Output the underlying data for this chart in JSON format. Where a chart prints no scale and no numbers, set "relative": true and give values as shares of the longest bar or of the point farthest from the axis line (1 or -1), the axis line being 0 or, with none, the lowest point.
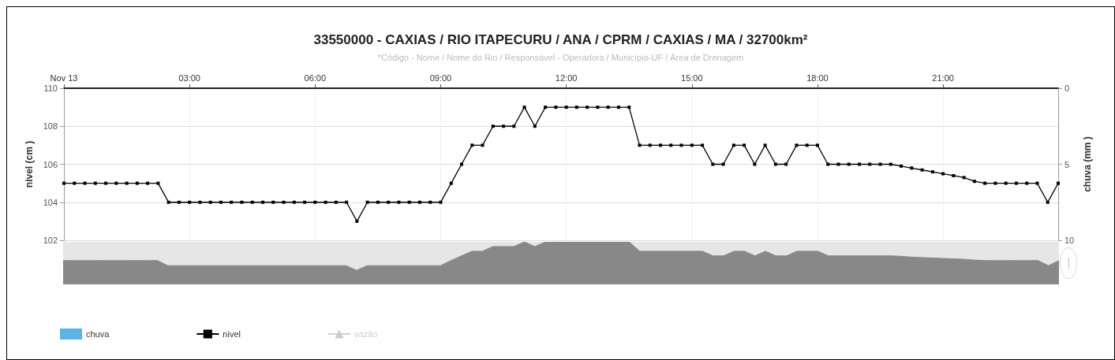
{
  "chart_data": [
    {
      "type": "line",
      "title": "33550000 - CAXIAS / RIO ITAPECURU / ANA / CPRM / CAXIAS / MA / 32700km²",
      "subtitle": "*Código - Nome / Nome do Rio / Responsável - Operadora / Município-UF / Área de Drenagem",
      "ylabel": "nivel (cm )",
      "y2label": "chuva (mm )",
      "xlim": [
        0,
        23.75
      ],
      "xticks": [
        {
          "value": 0,
          "label": "Nov 13"
        },
        {
          "value": 3,
          "label": "03:00"
        },
        {
          "value": 6,
          "label": "06:00"
        },
        {
          "value": 9,
          "label": "09:00"
        },
        {
          "value": 12,
          "label": "12:00"
        },
        {
          "value": 15,
          "label": "15:00"
        },
        {
          "value": 18,
          "label": "18:00"
        },
        {
          "value": 21,
          "label": "21:00"
        }
      ],
      "ylim": [
        102,
        110
      ],
      "yticks": [
        102,
        104,
        106,
        108,
        110
      ],
      "y2lim": [
        10,
        0
      ],
      "y2ticks": [
        0,
        5,
        10
      ],
      "grid": true,
      "legend": "bottom left",
      "series": [
        {
          "name": "chuva",
          "type": "bar",
          "axis": "y2",
          "color": "#5ab4e5",
          "x": [
            0,
            1,
            2,
            3,
            4,
            5,
            6,
            7,
            8,
            9,
            10,
            11,
            12,
            13,
            14,
            15,
            16,
            17,
            18,
            19,
            20,
            21,
            22,
            23
          ],
          "values": [
            0,
            0,
            0,
            0,
            0,
            0,
            0,
            0,
            0,
            0,
            0,
            0,
            0,
            0,
            0,
            0,
            0,
            0,
            0,
            0,
            0,
            0,
            0,
            0
          ]
        },
        {
          "name": "nivel",
          "color": "#000000",
          "marker": "square",
          "line_style": "solid",
          "x": [
            0,
            0.25,
            0.5,
            0.75,
            1,
            1.25,
            1.5,
            1.75,
            2,
            2.25,
            2.5,
            2.75,
            3,
            3.25,
            3.5,
            3.75,
            4,
            4.25,
            4.5,
            4.75,
            5,
            5.25,
            5.5,
            5.75,
            6,
            6.25,
            6.5,
            6.75,
            7,
            7.25,
            7.5,
            7.75,
            8,
            8.25,
            8.5,
            8.75,
            9,
            9.25,
            9.5,
            9.75,
            10,
            10.25,
            10.5,
            10.75,
            11,
            11.25,
            11.5,
            11.75,
            12,
            12.25,
            12.5,
            12.75,
            13,
            13.25,
            13.5,
            13.75,
            14,
            14.25,
            14.5,
            14.75,
            15,
            15.25,
            15.5,
            15.75,
            16,
            16.25,
            16.5,
            16.75,
            17,
            17.25,
            17.5,
            17.75,
            18,
            18.25,
            18.5,
            18.75,
            19,
            19.25,
            19.5,
            19.75,
            20,
            20.25,
            20.5,
            20.75,
            21,
            21.25,
            21.5,
            21.75,
            22,
            22.25,
            22.5,
            22.75,
            23,
            23.25,
            23.5,
            23.75
          ],
          "values": [
            105,
            105,
            105,
            105,
            105,
            105,
            105,
            105,
            105,
            105,
            104,
            104,
            104,
            104,
            104,
            104,
            104,
            104,
            104,
            104,
            104,
            104,
            104,
            104,
            104,
            104,
            104,
            104,
            103,
            104,
            104,
            104,
            104,
            104,
            104,
            104,
            104,
            105,
            106,
            107,
            107,
            108,
            108,
            108,
            109,
            108,
            109,
            109,
            109,
            109,
            109,
            109,
            109,
            109,
            109,
            107,
            107,
            107,
            107,
            107,
            107,
            107,
            106,
            106,
            107,
            107,
            106,
            107,
            106,
            106,
            107,
            107,
            107,
            106,
            106,
            106,
            106,
            106,
            106,
            106,
            105.9,
            105.8,
            105.7,
            105.6,
            105.5,
            105.4,
            105.3,
            105.1,
            105,
            105,
            105,
            105,
            105,
            105,
            104,
            105
          ]
        },
        {
          "name": "vazão",
          "color": "#c8c8c8",
          "marker": "triangle"
        }
      ]
    },
    {
      "type": "area",
      "relative": true,
      "xlim": [
        0,
        23.75
      ],
      "series": [
        {
          "color": "#888888",
          "x": [
            0,
            0.25,
            0.5,
            0.75,
            1,
            1.25,
            1.5,
            1.75,
            2,
            2.25,
            2.5,
            2.75,
            3,
            3.25,
            3.5,
            3.75,
            4,
            4.25,
            4.5,
            4.75,
            5,
            5.25,
            5.5,
            5.75,
            6,
            6.25,
            6.5,
            6.75,
            7,
            7.25,
            7.5,
            7.75,
            8,
            8.25,
            8.5,
            8.75,
            9,
            9.25,
            9.5,
            9.75,
            10,
            10.25,
            10.5,
            10.75,
            11,
            11.25,
            11.5,
            11.75,
            12,
            12.25,
            12.5,
            12.75,
            13,
            13.25,
            13.5,
            13.75,
            14,
            14.25,
            14.5,
            14.75,
            15,
            15.25,
            15.5,
            15.75,
            16,
            16.25,
            16.5,
            16.75,
            17,
            17.25,
            17.5,
            17.75,
            18,
            18.25,
            18.5,
            18.75,
            19,
            19.25,
            19.5,
            19.75,
            20,
            20.25,
            20.5,
            20.75,
            21,
            21.25,
            21.5,
            21.75,
            22,
            22.25,
            22.5,
            22.75,
            23,
            23.25,
            23.5,
            23.75
          ],
          "values": [
            0.56,
            0.56,
            0.56,
            0.56,
            0.56,
            0.56,
            0.56,
            0.56,
            0.56,
            0.56,
            0.44,
            0.44,
            0.44,
            0.44,
            0.44,
            0.44,
            0.44,
            0.44,
            0.44,
            0.44,
            0.44,
            0.44,
            0.44,
            0.44,
            0.44,
            0.44,
            0.44,
            0.44,
            0.33,
            0.44,
            0.44,
            0.44,
            0.44,
            0.44,
            0.44,
            0.44,
            0.44,
            0.56,
            0.67,
            0.78,
            0.78,
            0.89,
            0.89,
            0.89,
            1,
            0.89,
            1,
            1,
            1,
            1,
            1,
            1,
            1,
            1,
            1,
            0.78,
            0.78,
            0.78,
            0.78,
            0.78,
            0.78,
            0.78,
            0.67,
            0.67,
            0.78,
            0.78,
            0.67,
            0.78,
            0.67,
            0.67,
            0.78,
            0.78,
            0.78,
            0.67,
            0.67,
            0.67,
            0.67,
            0.67,
            0.67,
            0.67,
            0.66,
            0.64,
            0.63,
            0.62,
            0.61,
            0.6,
            0.59,
            0.57,
            0.56,
            0.56,
            0.56,
            0.56,
            0.56,
            0.56,
            0.44,
            0.56
          ]
        }
      ]
    }
  ]
}
